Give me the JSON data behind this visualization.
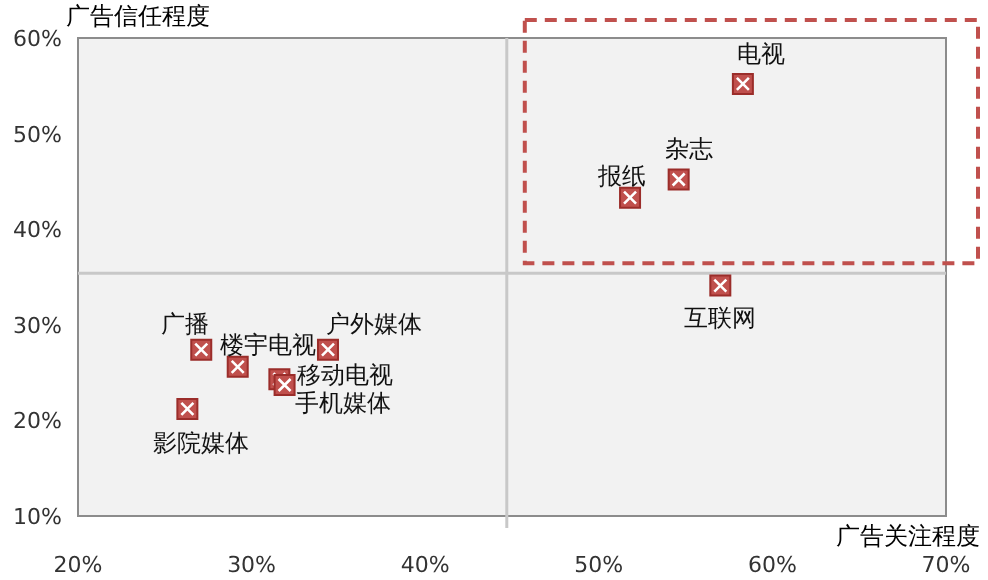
{
  "chart_data": {
    "type": "scatter",
    "xlabel": "广告关注程度",
    "ylabel": "广告信任程度",
    "x": [
      58.3,
      54.6,
      51.8,
      57.0,
      27.1,
      29.2,
      34.4,
      31.6,
      31.9,
      26.3
    ],
    "series": [
      {
        "color": "#c0504d",
        "values": [
          55.2,
          45.2,
          43.3,
          34.1,
          27.4,
          25.6,
          27.4,
          24.3,
          23.7,
          21.2
        ]
      }
    ],
    "marker": "square",
    "grid": false,
    "xlim": [
      20,
      70
    ],
    "ylim": [
      10,
      60
    ],
    "xticks": [
      {
        "value": 20,
        "label": "20%"
      },
      {
        "value": 30,
        "label": "30%"
      },
      {
        "value": 40,
        "label": "40%"
      },
      {
        "value": 50,
        "label": "50%"
      },
      {
        "value": 60,
        "label": "60%"
      },
      {
        "value": 70,
        "label": "70%"
      }
    ],
    "yticks": [
      {
        "value": 10,
        "label": "10%"
      },
      {
        "value": 20,
        "label": "20%"
      },
      {
        "value": 30,
        "label": "30%"
      },
      {
        "value": 40,
        "label": "40%"
      },
      {
        "value": 50,
        "label": "50%"
      },
      {
        "value": 60,
        "label": "60%"
      }
    ],
    "ref_lines": [
      {
        "axis": "x",
        "value": 44.7,
        "color": "#c8c8c8"
      },
      {
        "axis": "y",
        "value": 35.4,
        "color": "#c8c8c8"
      }
    ],
    "annotations": [
      {
        "text": "电视",
        "x": 58.3,
        "y": 55.2
      },
      {
        "text": "杂志",
        "x": 54.6,
        "y": 45.2
      },
      {
        "text": "报纸",
        "x": 51.8,
        "y": 43.3
      },
      {
        "text": "互联网",
        "x": 57.0,
        "y": 34.1
      },
      {
        "text": "广播",
        "x": 27.1,
        "y": 27.4
      },
      {
        "text": "楼宇电视",
        "x": 29.2,
        "y": 25.6
      },
      {
        "text": "户外媒体",
        "x": 34.4,
        "y": 27.4
      },
      {
        "text": "移动电视",
        "x": 31.6,
        "y": 24.3
      },
      {
        "text": "手机媒体",
        "x": 31.9,
        "y": 23.7
      },
      {
        "text": "影院媒体",
        "x": 26.3,
        "y": 21.2
      }
    ]
  }
}
